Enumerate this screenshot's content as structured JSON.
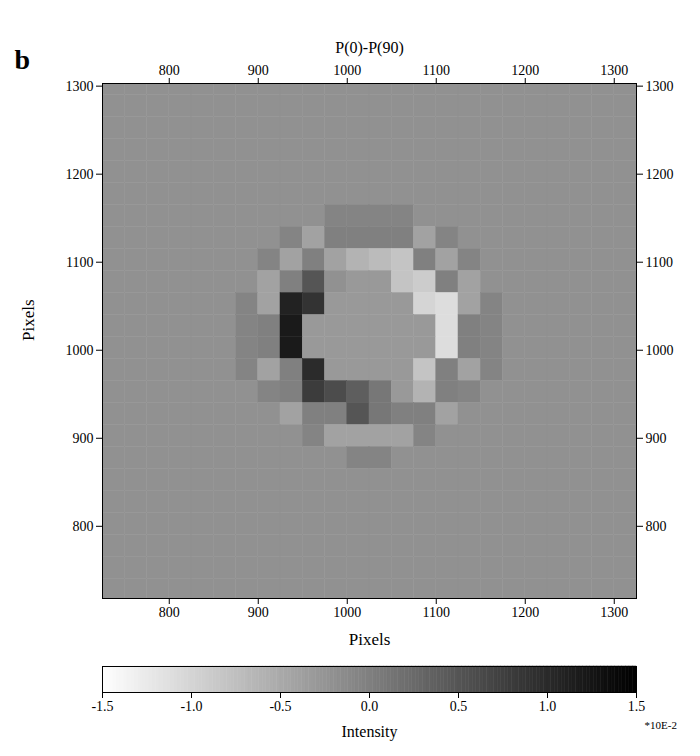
{
  "chart_data": {
    "type": "heatmap",
    "panel": "b",
    "title": "P(0)-P(90)",
    "x_label": "Pixels",
    "y_label": "Pixels",
    "xlim": [
      725,
      1325
    ],
    "ylim": [
      718,
      1303
    ],
    "xticks": [
      800,
      900,
      1000,
      1100,
      1200,
      1300
    ],
    "yticks": [
      800,
      900,
      1000,
      1100,
      1200,
      1300
    ],
    "cells": {
      "x": [
        737.5,
        762.5,
        787.5,
        812.5,
        837.5,
        862.5,
        887.5,
        912.5,
        937.5,
        962.5,
        987.5,
        1012.5,
        1037.5,
        1062.5,
        1087.5,
        1112.5,
        1137.5,
        1162.5,
        1187.5,
        1212.5,
        1237.5,
        1262.5,
        1287.5,
        1312.5
      ],
      "y": [
        1302.5,
        1277.5,
        1252.5,
        1227.5,
        1202.5,
        1177.5,
        1152.5,
        1127.5,
        1102.5,
        1077.5,
        1052.5,
        1027.5,
        1002.5,
        977.5,
        952.5,
        927.5,
        902.5,
        877.5,
        852.5,
        827.5,
        802.5,
        777.5,
        752.5,
        727.5
      ],
      "z": [
        [
          -0.2,
          -0.2,
          -0.2,
          -0.2,
          -0.2,
          -0.2,
          -0.2,
          -0.2,
          -0.2,
          -0.2,
          -0.2,
          -0.2,
          -0.2,
          -0.2,
          -0.2,
          -0.2,
          -0.2,
          -0.2,
          -0.2,
          -0.2,
          -0.2,
          -0.2,
          -0.2,
          -0.2
        ],
        [
          -0.2,
          -0.2,
          -0.2,
          -0.2,
          -0.2,
          -0.2,
          -0.2,
          -0.2,
          -0.2,
          -0.2,
          -0.2,
          -0.2,
          -0.2,
          -0.2,
          -0.2,
          -0.2,
          -0.2,
          -0.2,
          -0.2,
          -0.2,
          -0.2,
          -0.2,
          -0.2,
          -0.2
        ],
        [
          -0.2,
          -0.2,
          -0.2,
          -0.2,
          -0.2,
          -0.2,
          -0.2,
          -0.2,
          -0.2,
          -0.2,
          -0.2,
          -0.2,
          -0.2,
          -0.2,
          -0.2,
          -0.2,
          -0.2,
          -0.2,
          -0.2,
          -0.2,
          -0.2,
          -0.2,
          -0.2,
          -0.2
        ],
        [
          -0.2,
          -0.2,
          -0.2,
          -0.2,
          -0.2,
          -0.2,
          -0.2,
          -0.2,
          -0.2,
          -0.2,
          -0.2,
          -0.2,
          -0.2,
          -0.2,
          -0.2,
          -0.2,
          -0.2,
          -0.2,
          -0.2,
          -0.2,
          -0.2,
          -0.2,
          -0.2,
          -0.2
        ],
        [
          -0.2,
          -0.2,
          -0.2,
          -0.2,
          -0.2,
          -0.2,
          -0.2,
          -0.2,
          -0.2,
          -0.2,
          -0.2,
          -0.2,
          -0.2,
          -0.2,
          -0.2,
          -0.2,
          -0.2,
          -0.2,
          -0.2,
          -0.2,
          -0.2,
          -0.2,
          -0.2,
          -0.2
        ],
        [
          -0.2,
          -0.2,
          -0.2,
          -0.2,
          -0.2,
          -0.2,
          -0.2,
          -0.2,
          -0.2,
          -0.2,
          -0.2,
          -0.2,
          -0.2,
          -0.2,
          -0.2,
          -0.2,
          -0.2,
          -0.2,
          -0.2,
          -0.2,
          -0.2,
          -0.2,
          -0.2,
          -0.2
        ],
        [
          -0.2,
          -0.2,
          -0.2,
          -0.2,
          -0.2,
          -0.2,
          -0.2,
          -0.2,
          -0.2,
          -0.2,
          -0.05,
          -0.05,
          -0.05,
          -0.05,
          -0.2,
          -0.2,
          -0.2,
          -0.2,
          -0.2,
          -0.2,
          -0.2,
          -0.2,
          -0.2,
          -0.2
        ],
        [
          -0.2,
          -0.2,
          -0.2,
          -0.2,
          -0.2,
          -0.2,
          -0.2,
          -0.2,
          -0.05,
          -0.4,
          0,
          0,
          0,
          0,
          -0.4,
          -0.05,
          -0.2,
          -0.2,
          -0.2,
          -0.2,
          -0.2,
          -0.2,
          -0.2,
          -0.2
        ],
        [
          -0.2,
          -0.2,
          -0.2,
          -0.2,
          -0.2,
          -0.2,
          -0.2,
          -0.05,
          -0.4,
          0,
          -0.4,
          -0.6,
          -0.7,
          -0.8,
          0,
          -0.4,
          -0.05,
          -0.2,
          -0.2,
          -0.2,
          -0.2,
          -0.2,
          -0.2,
          -0.2
        ],
        [
          -0.2,
          -0.2,
          -0.2,
          -0.2,
          -0.2,
          -0.2,
          -0.2,
          -0.4,
          0,
          0.5,
          -0.2,
          -0.3,
          -0.3,
          -0.8,
          -0.9,
          0,
          -0.4,
          -0.2,
          -0.2,
          -0.2,
          -0.2,
          -0.2,
          -0.2,
          -0.2
        ],
        [
          -0.2,
          -0.2,
          -0.2,
          -0.2,
          -0.2,
          -0.2,
          -0.05,
          -0.4,
          1.1,
          0.9,
          -0.3,
          -0.3,
          -0.3,
          -0.3,
          -1.0,
          -1.1,
          -0.4,
          -0.05,
          -0.2,
          -0.2,
          -0.2,
          -0.2,
          -0.2,
          -0.2
        ],
        [
          -0.2,
          -0.2,
          -0.2,
          -0.2,
          -0.2,
          -0.2,
          -0.05,
          0,
          1.2,
          -0.3,
          -0.3,
          -0.3,
          -0.3,
          -0.3,
          -0.3,
          -1.1,
          0,
          -0.05,
          -0.2,
          -0.2,
          -0.2,
          -0.2,
          -0.2,
          -0.2
        ],
        [
          -0.2,
          -0.2,
          -0.2,
          -0.2,
          -0.2,
          -0.2,
          -0.05,
          0,
          1.2,
          -0.3,
          -0.3,
          -0.3,
          -0.3,
          -0.3,
          -0.3,
          -1.1,
          0,
          -0.05,
          -0.2,
          -0.2,
          -0.2,
          -0.2,
          -0.2,
          -0.2
        ],
        [
          -0.2,
          -0.2,
          -0.2,
          -0.2,
          -0.2,
          -0.2,
          -0.05,
          -0.4,
          0,
          1.0,
          -0.3,
          -0.3,
          -0.3,
          -0.3,
          -0.8,
          0,
          -0.4,
          -0.05,
          -0.2,
          -0.2,
          -0.2,
          -0.2,
          -0.2,
          -0.2
        ],
        [
          -0.2,
          -0.2,
          -0.2,
          -0.2,
          -0.2,
          -0.2,
          -0.2,
          -0.05,
          0,
          0.8,
          0.6,
          0.4,
          0.1,
          -0.3,
          -0.6,
          0,
          -0.05,
          -0.2,
          -0.2,
          -0.2,
          -0.2,
          -0.2,
          -0.2,
          -0.2
        ],
        [
          -0.2,
          -0.2,
          -0.2,
          -0.2,
          -0.2,
          -0.2,
          -0.2,
          -0.2,
          -0.4,
          0,
          0,
          0.5,
          0.1,
          0,
          0,
          -0.4,
          -0.2,
          -0.2,
          -0.2,
          -0.2,
          -0.2,
          -0.2,
          -0.2,
          -0.2
        ],
        [
          -0.2,
          -0.2,
          -0.2,
          -0.2,
          -0.2,
          -0.2,
          -0.2,
          -0.2,
          -0.2,
          -0.05,
          -0.4,
          -0.4,
          -0.4,
          -0.4,
          -0.05,
          -0.2,
          -0.2,
          -0.2,
          -0.2,
          -0.2,
          -0.2,
          -0.2,
          -0.2,
          -0.2
        ],
        [
          -0.2,
          -0.2,
          -0.2,
          -0.2,
          -0.2,
          -0.2,
          -0.2,
          -0.2,
          -0.2,
          -0.2,
          -0.2,
          -0.05,
          -0.05,
          -0.2,
          -0.2,
          -0.2,
          -0.2,
          -0.2,
          -0.2,
          -0.2,
          -0.2,
          -0.2,
          -0.2,
          -0.2
        ],
        [
          -0.2,
          -0.2,
          -0.2,
          -0.2,
          -0.2,
          -0.2,
          -0.2,
          -0.2,
          -0.2,
          -0.2,
          -0.2,
          -0.2,
          -0.2,
          -0.2,
          -0.2,
          -0.2,
          -0.2,
          -0.2,
          -0.2,
          -0.2,
          -0.2,
          -0.2,
          -0.2,
          -0.2
        ],
        [
          -0.2,
          -0.2,
          -0.2,
          -0.2,
          -0.2,
          -0.2,
          -0.2,
          -0.2,
          -0.2,
          -0.2,
          -0.2,
          -0.2,
          -0.2,
          -0.2,
          -0.2,
          -0.2,
          -0.2,
          -0.2,
          -0.2,
          -0.2,
          -0.2,
          -0.2,
          -0.2,
          -0.2
        ],
        [
          -0.2,
          -0.2,
          -0.2,
          -0.2,
          -0.2,
          -0.2,
          -0.2,
          -0.2,
          -0.2,
          -0.2,
          -0.2,
          -0.2,
          -0.2,
          -0.2,
          -0.2,
          -0.2,
          -0.2,
          -0.2,
          -0.2,
          -0.2,
          -0.2,
          -0.2,
          -0.2,
          -0.2
        ],
        [
          -0.2,
          -0.2,
          -0.2,
          -0.2,
          -0.2,
          -0.2,
          -0.2,
          -0.2,
          -0.2,
          -0.2,
          -0.2,
          -0.2,
          -0.2,
          -0.2,
          -0.2,
          -0.2,
          -0.2,
          -0.2,
          -0.2,
          -0.2,
          -0.2,
          -0.2,
          -0.2,
          -0.2
        ],
        [
          -0.2,
          -0.2,
          -0.2,
          -0.2,
          -0.2,
          -0.2,
          -0.2,
          -0.2,
          -0.2,
          -0.2,
          -0.2,
          -0.2,
          -0.2,
          -0.2,
          -0.2,
          -0.2,
          -0.2,
          -0.2,
          -0.2,
          -0.2,
          -0.2,
          -0.2,
          -0.2,
          -0.2
        ],
        [
          -0.2,
          -0.2,
          -0.2,
          -0.2,
          -0.2,
          -0.2,
          -0.2,
          -0.2,
          -0.2,
          -0.2,
          -0.2,
          -0.2,
          -0.2,
          -0.2,
          -0.2,
          -0.2,
          -0.2,
          -0.2,
          -0.2,
          -0.2,
          -0.2,
          -0.2,
          -0.2,
          -0.2
        ]
      ]
    },
    "colorbar": {
      "label": "Intensity",
      "multiplier": "*10E-2",
      "range": [
        -1.5,
        1.5
      ],
      "ticks": [
        -1.5,
        {
          "value": -1,
          "label": "-1.0"
        },
        -0.5,
        {
          "value": 0,
          "label": "0.0"
        },
        0.5,
        {
          "value": 1,
          "label": "1.0"
        },
        1.5
      ]
    }
  }
}
